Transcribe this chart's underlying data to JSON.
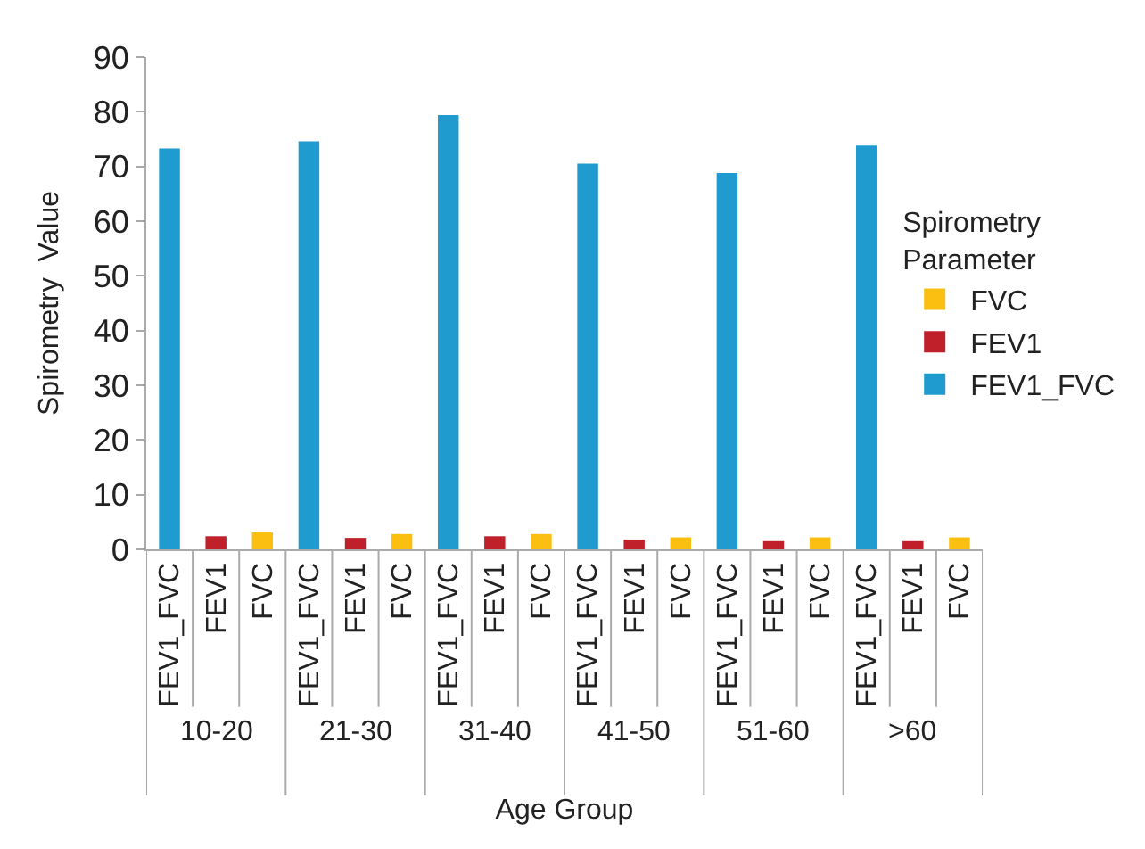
{
  "chart_data": {
    "type": "bar",
    "xlabel": "Age Group",
    "ylabel": "Spirometry  Value",
    "legend_title": "Spirometry Parameter",
    "categories": [
      "10-20",
      "21-30",
      "31-40",
      "41-50",
      "51-60",
      ">60"
    ],
    "series": [
      {
        "name": "FEV1_FVC",
        "color": "#1f9bcf",
        "values": [
          73.3,
          74.6,
          79.4,
          70.5,
          68.8,
          73.8
        ]
      },
      {
        "name": "FEV1",
        "color": "#c0202a",
        "values": [
          2.4,
          2.1,
          2.4,
          1.8,
          1.5,
          1.5
        ]
      },
      {
        "name": "FVC",
        "color": "#fbbf12",
        "values": [
          3.1,
          2.8,
          2.8,
          2.2,
          2.2,
          2.2
        ]
      }
    ],
    "ylim": [
      0,
      90
    ],
    "yticks": [
      0,
      10,
      20,
      30,
      40,
      50,
      60,
      70,
      80,
      90
    ],
    "legend": "right"
  }
}
